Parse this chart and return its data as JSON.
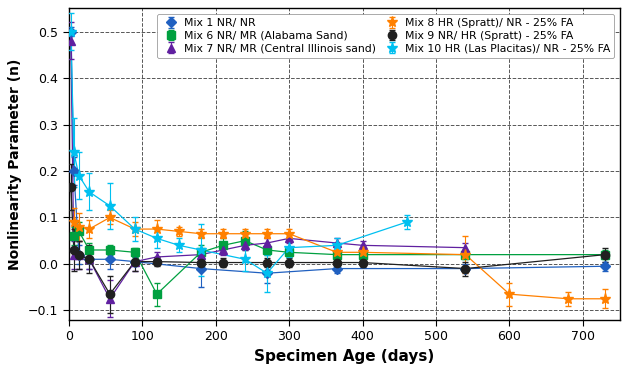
{
  "xlabel": "Specimen Age (days)",
  "ylabel": "Nonlinearity Parameter (n)",
  "xlim": [
    0,
    750
  ],
  "ylim": [
    -0.12,
    0.55
  ],
  "yticks": [
    -0.1,
    0.0,
    0.1,
    0.2,
    0.3,
    0.4,
    0.5
  ],
  "xticks": [
    0,
    100,
    200,
    300,
    400,
    500,
    600,
    700
  ],
  "series": [
    {
      "label": "Mix 1 NR/ NR",
      "color": "#2060C0",
      "marker": "D",
      "markersize": 5,
      "x": [
        3,
        7,
        14,
        28,
        56,
        90,
        180,
        270,
        365,
        540,
        730
      ],
      "y": [
        0.5,
        0.2,
        0.02,
        0.01,
        0.01,
        0.005,
        -0.01,
        -0.02,
        -0.01,
        -0.01,
        -0.005
      ],
      "yerr": [
        0.01,
        0.03,
        0.02,
        0.02,
        0.02,
        0.01,
        0.04,
        0.02,
        0.01,
        0.01,
        0.01
      ]
    },
    {
      "label": "Mix 6 NR/ MR (Alabama Sand)",
      "color": "#00A040",
      "marker": "s",
      "markersize": 6,
      "x": [
        7,
        14,
        28,
        56,
        90,
        120,
        180,
        210,
        240,
        270,
        300,
        365,
        400,
        540,
        730
      ],
      "y": [
        0.06,
        0.07,
        0.03,
        0.03,
        0.025,
        -0.065,
        0.025,
        0.04,
        0.05,
        0.03,
        0.025,
        0.02,
        0.02,
        0.02,
        0.02
      ],
      "yerr": [
        0.02,
        0.02,
        0.015,
        0.01,
        0.01,
        0.025,
        0.015,
        0.015,
        0.02,
        0.01,
        0.01,
        0.01,
        0.01,
        0.01,
        0.01
      ]
    },
    {
      "label": "Mix 7 NR/ MR (Central Illinois sand)",
      "color": "#6020A0",
      "marker": "^",
      "markersize": 6,
      "x": [
        3,
        7,
        14,
        28,
        56,
        90,
        120,
        180,
        210,
        240,
        270,
        300,
        365,
        400,
        540
      ],
      "y": [
        0.48,
        0.02,
        0.02,
        0.01,
        -0.075,
        0.005,
        0.015,
        0.02,
        0.03,
        0.04,
        0.045,
        0.055,
        0.045,
        0.04,
        0.035
      ],
      "yerr": [
        0.04,
        0.03,
        0.03,
        0.02,
        0.04,
        0.02,
        0.01,
        0.01,
        0.01,
        0.01,
        0.01,
        0.01,
        0.01,
        0.01,
        0.01
      ]
    },
    {
      "label": "Mix 8 HR (Spratt)/ NR - 25% FA",
      "color": "#FF8000",
      "marker": "*",
      "markersize": 8,
      "x": [
        7,
        14,
        28,
        56,
        90,
        120,
        150,
        180,
        210,
        240,
        270,
        300,
        365,
        400,
        540,
        600,
        680,
        730
      ],
      "y": [
        0.09,
        0.08,
        0.075,
        0.1,
        0.075,
        0.075,
        0.07,
        0.065,
        0.065,
        0.065,
        0.065,
        0.065,
        0.025,
        0.025,
        0.02,
        -0.065,
        -0.075,
        -0.075
      ],
      "yerr": [
        0.03,
        0.03,
        0.02,
        0.015,
        0.015,
        0.02,
        0.01,
        0.01,
        0.01,
        0.01,
        0.01,
        0.01,
        0.015,
        0.01,
        0.04,
        0.025,
        0.015,
        0.02
      ]
    },
    {
      "label": "Mix 9 NR/ HR (Spratt) - 25% FA",
      "color": "#202020",
      "marker": "o",
      "markersize": 6,
      "x": [
        3,
        7,
        14,
        28,
        56,
        90,
        120,
        180,
        210,
        270,
        300,
        365,
        400,
        540,
        730
      ],
      "y": [
        0.165,
        0.03,
        0.02,
        0.01,
        -0.065,
        0.005,
        0.005,
        0.003,
        0.003,
        0.003,
        0.003,
        0.003,
        0.003,
        -0.01,
        0.02
      ],
      "yerr": [
        0.05,
        0.045,
        0.03,
        0.03,
        0.04,
        0.02,
        0.01,
        0.01,
        0.01,
        0.01,
        0.01,
        0.01,
        0.01,
        0.015,
        0.015
      ]
    },
    {
      "label": "Mix 10 HR (Las Placitas)/ NR - 25% FA",
      "color": "#00C0F0",
      "marker": "*",
      "markersize": 8,
      "x": [
        3,
        7,
        14,
        28,
        56,
        90,
        120,
        150,
        180,
        240,
        270,
        300,
        365,
        460
      ],
      "y": [
        0.5,
        0.24,
        0.19,
        0.155,
        0.125,
        0.075,
        0.055,
        0.04,
        0.03,
        0.01,
        -0.02,
        0.035,
        0.04,
        0.09
      ],
      "yerr": [
        0.04,
        0.075,
        0.05,
        0.04,
        0.05,
        0.025,
        0.02,
        0.015,
        0.055,
        0.025,
        0.04,
        0.02,
        0.015,
        0.015
      ]
    }
  ],
  "background_color": "#FFFFFF"
}
